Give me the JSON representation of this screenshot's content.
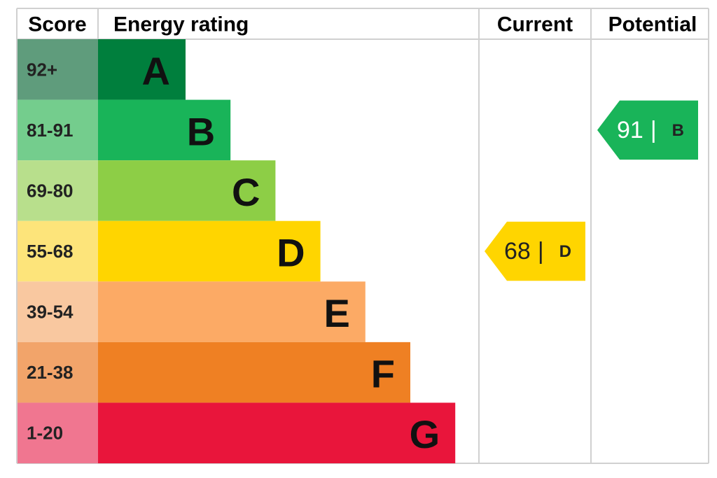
{
  "header": {
    "score": "Score",
    "rating": "Energy rating",
    "current": "Current",
    "potential": "Potential"
  },
  "bands": [
    {
      "score": "92+",
      "letter": "A",
      "color": "#007f3d",
      "score_color": "#5f9c7c"
    },
    {
      "score": "81-91",
      "letter": "B",
      "color": "#19b459",
      "score_color": "#74cd8d"
    },
    {
      "score": "69-80",
      "letter": "C",
      "color": "#8dce46",
      "score_color": "#b8df8c"
    },
    {
      "score": "55-68",
      "letter": "D",
      "color": "#ffd500",
      "score_color": "#fde47a"
    },
    {
      "score": "39-54",
      "letter": "E",
      "color": "#fcaa65",
      "score_color": "#f9c8a0"
    },
    {
      "score": "21-38",
      "letter": "F",
      "color": "#ef8023",
      "score_color": "#f2a46a"
    },
    {
      "score": "1-20",
      "letter": "G",
      "color": "#e9153b",
      "score_color": "#f07690"
    }
  ],
  "current": {
    "value": 68,
    "separator": "|",
    "letter": "D"
  },
  "potential": {
    "value": 91,
    "separator": "|",
    "letter": "B"
  }
}
